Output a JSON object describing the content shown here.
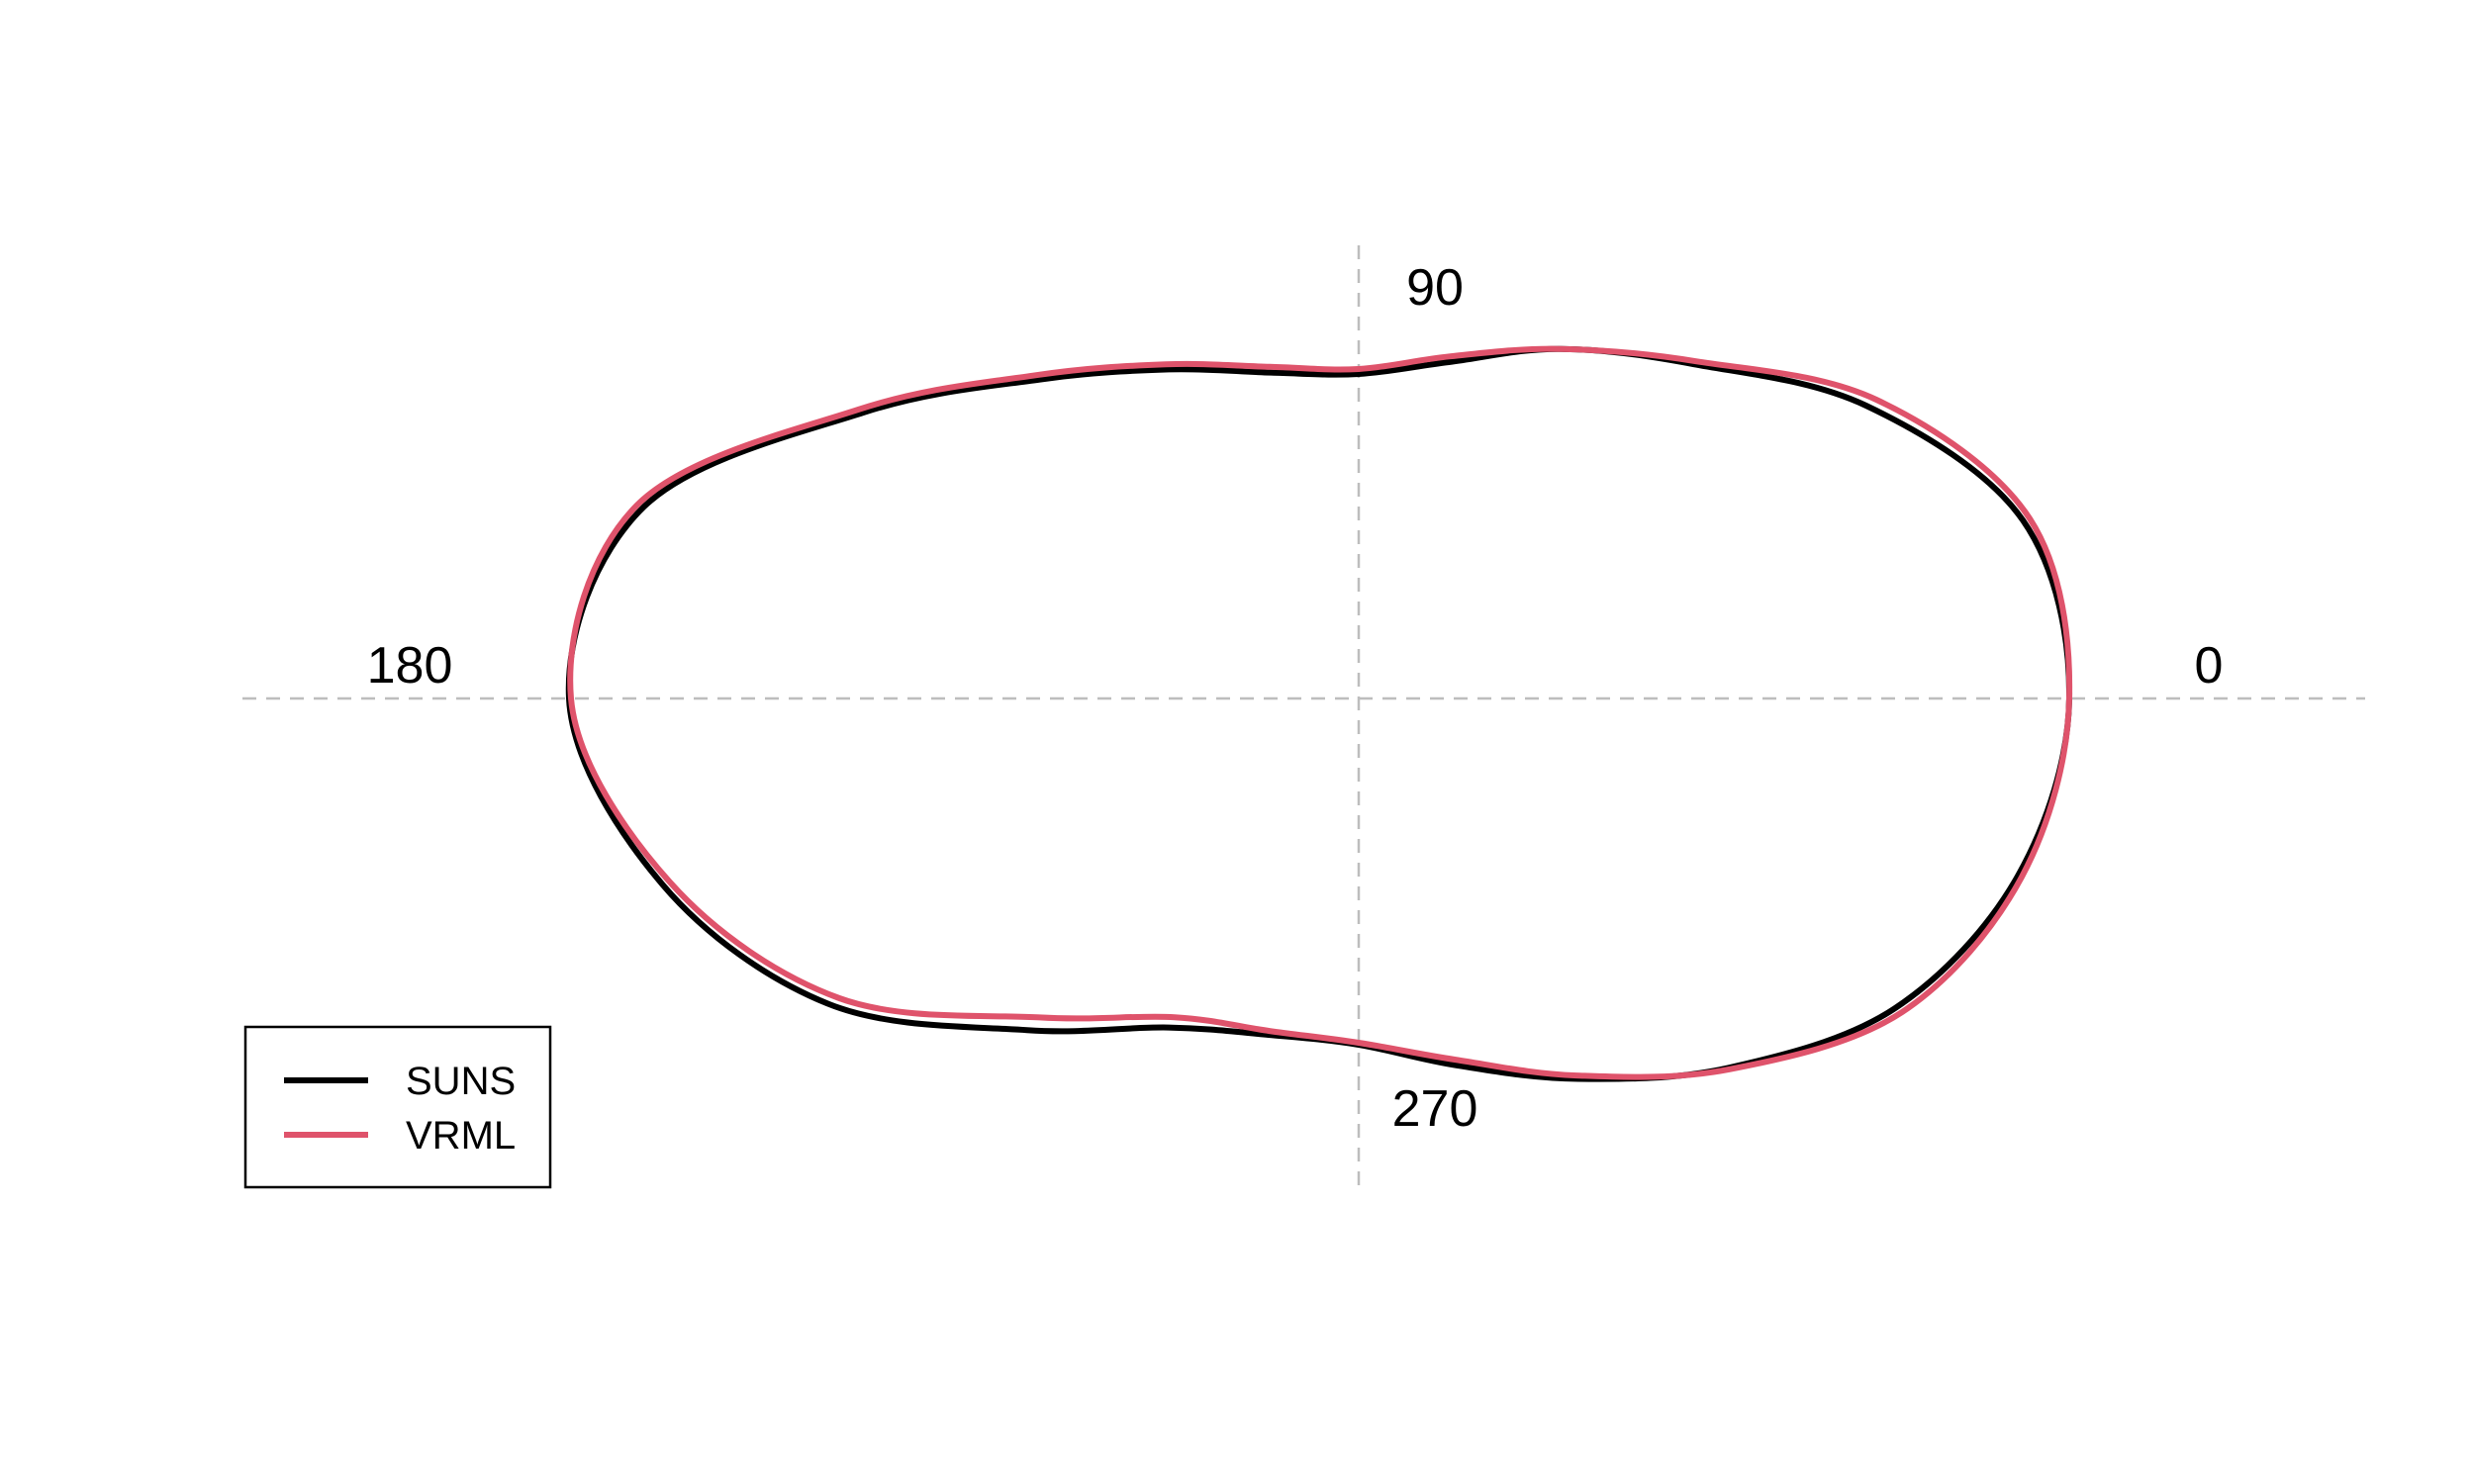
{
  "chart_data": {
    "type": "line",
    "subtype": "polar",
    "title": "",
    "angle_labels": [
      "0",
      "90",
      "180",
      "270"
    ],
    "grid": false,
    "legend_position": "bottom-left",
    "series": [
      {
        "name": "SUNS",
        "color": "#000000",
        "angles": [
          0,
          15,
          30,
          45,
          60,
          75,
          90,
          105,
          120,
          135,
          150,
          165,
          180,
          195,
          210,
          225,
          240,
          255,
          270,
          285,
          300,
          315,
          330,
          345
        ],
        "radii": [
          0.718,
          0.695,
          0.592,
          0.478,
          0.408,
          0.352,
          0.328,
          0.341,
          0.384,
          0.456,
          0.578,
          0.748,
          0.798,
          0.728,
          0.618,
          0.474,
          0.384,
          0.352,
          0.35,
          0.384,
          0.444,
          0.528,
          0.626,
          0.69
        ]
      },
      {
        "name": "VRML",
        "color": "#df536b",
        "angles": [
          0,
          15,
          30,
          45,
          60,
          75,
          90,
          105,
          120,
          135,
          150,
          165,
          180,
          195,
          210,
          225,
          240,
          255,
          270,
          285,
          300,
          315,
          330,
          345
        ],
        "radii": [
          0.718,
          0.702,
          0.604,
          0.482,
          0.408,
          0.358,
          0.333,
          0.347,
          0.39,
          0.462,
          0.584,
          0.755,
          0.796,
          0.72,
          0.606,
          0.456,
          0.372,
          0.348,
          0.348,
          0.378,
          0.44,
          0.53,
          0.634,
          0.694
        ]
      }
    ]
  }
}
